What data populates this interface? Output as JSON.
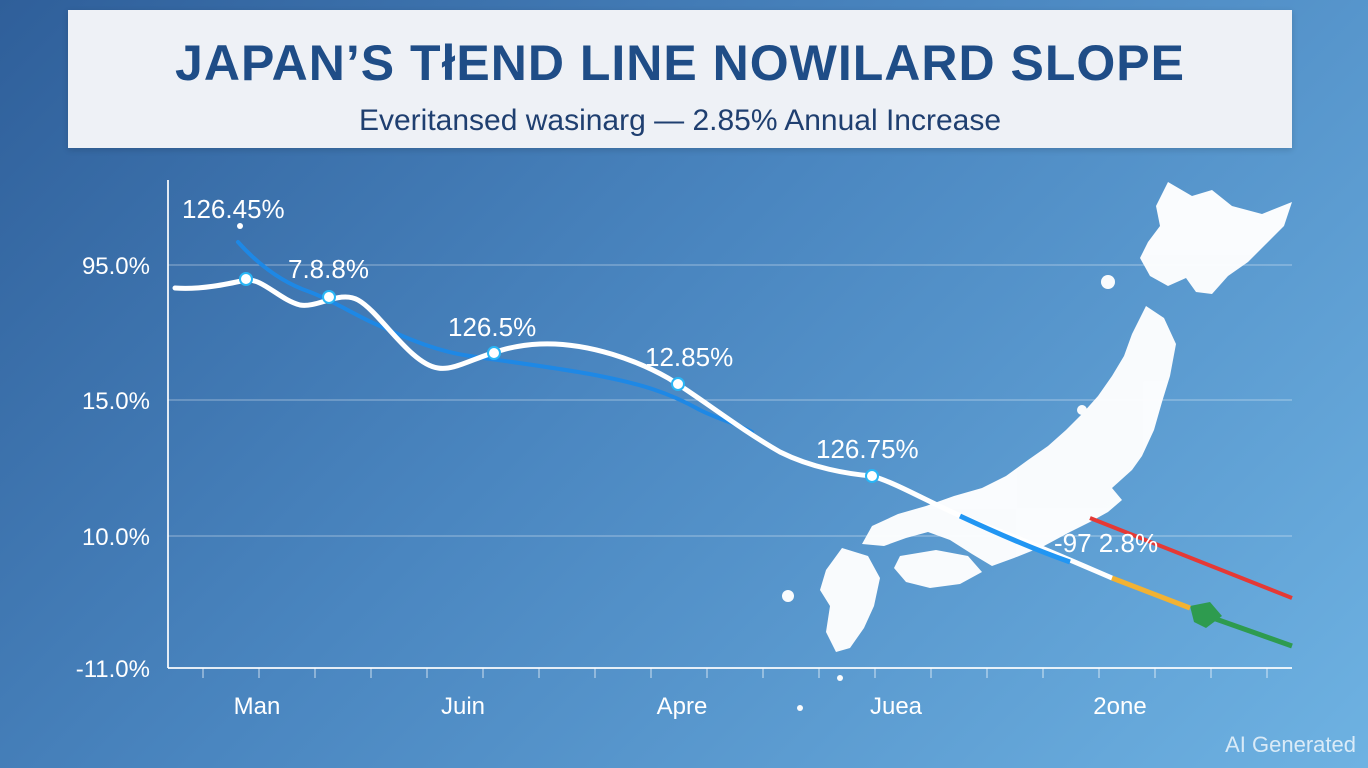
{
  "header": {
    "title": "JAPAN’S TłEND LINE NOWILARD SLOPE",
    "subtitle": "Everitansed wasinarg — 2.85% Annual Increase"
  },
  "watermark": "AI Generated",
  "colors": {
    "series_main": "#ffffff",
    "series_trend": "#1e88e5",
    "marker": "#29b6f6",
    "red_line": "#e53935",
    "green_line": "#2e9b4f",
    "yellow_segment": "#f2b233",
    "map_fill": "#ffffff"
  },
  "map": {
    "icon": "japan-map-icon"
  },
  "chart_data": {
    "type": "line",
    "categories": [
      "Man",
      "Juin",
      "Apre",
      "Juea",
      "2one"
    ],
    "yticks": [
      "95.0%",
      "15.0%",
      "10.0%",
      "-11.0%"
    ],
    "annotations": [
      "126.45%",
      "7.8.8%",
      "126.5%",
      "12.85%",
      "126.75%",
      "-97 2.8%"
    ],
    "grid": true,
    "legend": "none"
  }
}
